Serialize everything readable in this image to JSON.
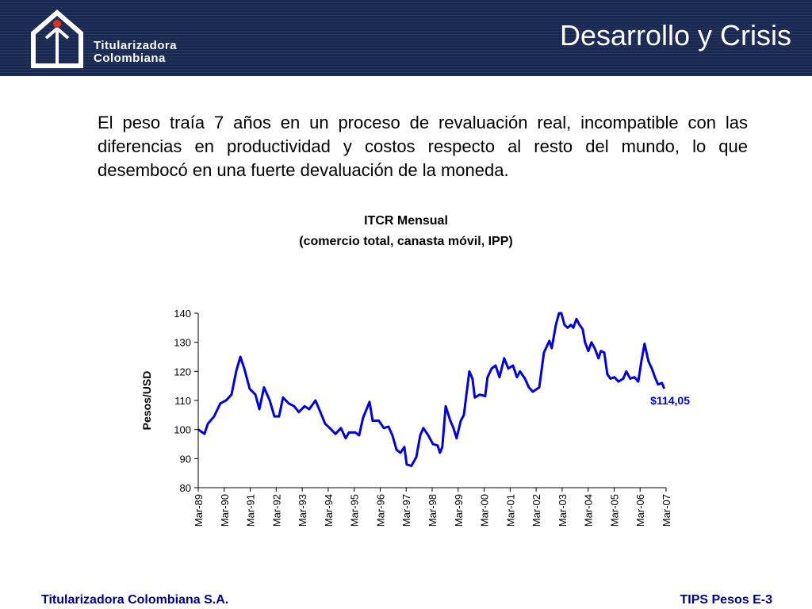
{
  "header": {
    "logo": "Titularizadora Colombiana",
    "title": "Desarrollo y Crisis"
  },
  "paragraph": "El peso traía 7 años en un proceso de revaluación real, incompatible con las diferencias en productividad y costos respecto al resto del mundo, lo que desembocó en una fuerte devaluación de la moneda.",
  "chart_data": {
    "type": "line",
    "title": "ITCR Mensual",
    "subtitle": "(comercio total, canasta móvil, IPP)",
    "y_label": "Pesos/USD",
    "annotation": {
      "value": 114.05,
      "label": "$114,05"
    },
    "color": "#0000dd",
    "xlim": [
      1989.17,
      2007.17
    ],
    "xticks": [
      {
        "value": 1989.17,
        "label": "Mar-89"
      },
      {
        "value": 1990.17,
        "label": "Mar-90"
      },
      {
        "value": 1991.17,
        "label": "Mar-91"
      },
      {
        "value": 1992.17,
        "label": "Mar-92"
      },
      {
        "value": 1993.17,
        "label": "Mar-93"
      },
      {
        "value": 1994.17,
        "label": "Mar-94"
      },
      {
        "value": 1995.17,
        "label": "Mar-95"
      },
      {
        "value": 1996.17,
        "label": "Mar-96"
      },
      {
        "value": 1997.17,
        "label": "Mar-97"
      },
      {
        "value": 1998.17,
        "label": "Mar-98"
      },
      {
        "value": 1999.17,
        "label": "Mar-99"
      },
      {
        "value": 2000.17,
        "label": "Mar-00"
      },
      {
        "value": 2001.17,
        "label": "Mar-01"
      },
      {
        "value": 2002.17,
        "label": "Mar-02"
      },
      {
        "value": 2003.17,
        "label": "Mar-03"
      },
      {
        "value": 2004.17,
        "label": "Mar-04"
      },
      {
        "value": 2005.17,
        "label": "Mar-05"
      },
      {
        "value": 2006.17,
        "label": "Mar-06"
      },
      {
        "value": 2007.17,
        "label": "Mar-07"
      }
    ],
    "ylim": [
      80,
      140
    ],
    "yticks": [
      80,
      90,
      100,
      110,
      120,
      130,
      140
    ],
    "x": [
      1989.17,
      1989.41,
      1989.54,
      1989.78,
      1990.02,
      1990.24,
      1990.45,
      1990.63,
      1990.79,
      1990.94,
      1991.15,
      1991.37,
      1991.52,
      1991.7,
      1991.92,
      1992.1,
      1992.28,
      1992.43,
      1992.65,
      1992.86,
      1993.04,
      1993.26,
      1993.44,
      1993.68,
      1993.87,
      1994.05,
      1994.23,
      1994.45,
      1994.66,
      1994.84,
      1994.97,
      1995.21,
      1995.36,
      1995.51,
      1995.76,
      1995.88,
      1996.12,
      1996.31,
      1996.49,
      1996.64,
      1996.8,
      1996.95,
      1997.1,
      1997.19,
      1997.37,
      1997.56,
      1997.71,
      1997.83,
      1998.02,
      1998.2,
      1998.38,
      1998.47,
      1998.56,
      1998.69,
      1998.87,
      1998.99,
      1999.11,
      1999.27,
      1999.39,
      1999.48,
      1999.6,
      1999.72,
      1999.81,
      2000.0,
      2000.21,
      2000.3,
      2000.46,
      2000.61,
      2000.76,
      2000.94,
      2001.1,
      2001.28,
      2001.43,
      2001.55,
      2001.74,
      2001.89,
      2002.04,
      2002.29,
      2002.47,
      2002.68,
      2002.77,
      2002.93,
      2003.05,
      2003.14,
      2003.26,
      2003.38,
      2003.51,
      2003.6,
      2003.72,
      2003.84,
      2003.96,
      2004.05,
      2004.18,
      2004.3,
      2004.42,
      2004.57,
      2004.66,
      2004.79,
      2004.91,
      2005.03,
      2005.18,
      2005.34,
      2005.52,
      2005.64,
      2005.79,
      2005.95,
      2006.1,
      2006.22,
      2006.34,
      2006.49,
      2006.62,
      2006.74,
      2006.86,
      2007.01,
      2007.1
    ],
    "values": [
      100,
      98.5,
      102,
      104.5,
      109,
      110,
      112,
      120,
      125,
      121,
      114,
      112,
      107,
      114.5,
      110,
      104.5,
      104.5,
      111,
      109,
      108,
      106,
      108,
      107,
      110,
      106,
      102,
      100.5,
      98.5,
      100.5,
      97,
      99,
      99,
      98,
      104,
      109.5,
      103,
      103,
      100.5,
      101,
      98,
      93,
      92,
      94,
      88,
      87.5,
      90.5,
      98,
      100.5,
      98,
      95,
      94.5,
      92,
      94,
      108,
      103,
      100.5,
      97,
      103,
      105,
      111.5,
      120,
      117.5,
      111,
      112,
      111.5,
      118,
      121,
      122,
      118,
      124.5,
      121,
      122,
      118,
      120,
      117.5,
      114.5,
      113,
      114.5,
      126.5,
      130.5,
      128,
      136,
      140,
      140,
      136,
      135,
      136,
      135,
      138,
      136,
      134.5,
      130,
      127,
      130,
      128,
      124.5,
      127,
      126.5,
      119,
      117.5,
      118,
      116.5,
      117.5,
      120,
      117.5,
      118,
      116.5,
      123.5,
      129.5,
      123.5,
      121,
      118,
      115.5,
      116,
      114.05
    ]
  },
  "footer": {
    "left": "Titularizadora Colombiana S.A.",
    "right": "TIPS Pesos E-3"
  }
}
